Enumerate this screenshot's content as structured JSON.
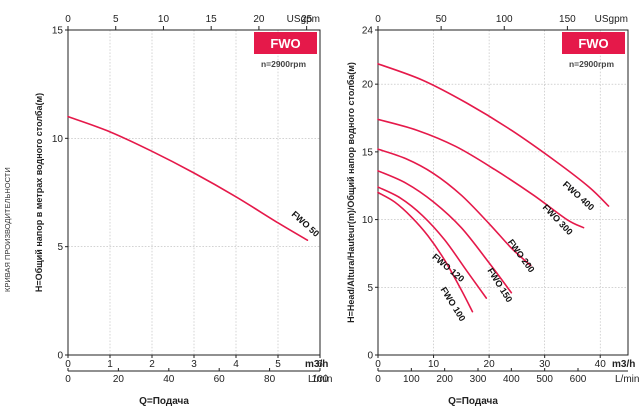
{
  "side_title": "КРИВАЯ ПРОИЗВОДИТЕЛЬНОСТИ",
  "colors": {
    "curve": "#e5194a",
    "badge": "#e5194a",
    "grid": "#b9b9b9"
  },
  "chart_data": [
    {
      "type": "line",
      "badge": "FWO",
      "speed": "n=2900rpm",
      "ylabel": "H=Общий напор в метрах водного столба(м)",
      "xlabel": "Q=Подача",
      "ylim": [
        0,
        15
      ],
      "yticks": [
        0,
        5,
        10,
        15
      ],
      "xlim": [
        0,
        6
      ],
      "xticks": [
        0,
        1,
        2,
        3,
        4,
        5,
        6
      ],
      "x_unit": "m3/h",
      "top_axis": {
        "lim": [
          0,
          26.4
        ],
        "ticks": [
          0,
          5,
          10,
          15,
          20,
          25
        ],
        "unit": "USgpm"
      },
      "bottom_axis": {
        "lim": [
          0,
          100
        ],
        "ticks": [
          0,
          20,
          40,
          60,
          80,
          100
        ],
        "unit": "L/min"
      },
      "series": [
        {
          "name": "FWO 50",
          "x": [
            0,
            1,
            2,
            3,
            4,
            5,
            5.7
          ],
          "y": [
            11,
            10.3,
            9.4,
            8.4,
            7.3,
            6.1,
            5.3
          ]
        }
      ]
    },
    {
      "type": "line",
      "badge": "FWO",
      "speed": "n=2900rpm",
      "ylabel": "H=Head/Altura/Hauteur(m)/Общий напор водного столба(м)",
      "xlabel": "Q=Подача",
      "ylim": [
        0,
        24
      ],
      "yticks": [
        0,
        5,
        10,
        15,
        20,
        24
      ],
      "xlim": [
        0,
        45
      ],
      "xticks": [
        0,
        10,
        20,
        30,
        40
      ],
      "x_unit": "m3/h",
      "top_axis": {
        "lim": [
          0,
          198
        ],
        "ticks": [
          0,
          50,
          100,
          150
        ],
        "unit": "USgpm"
      },
      "bottom_axis": {
        "lim": [
          0,
          750
        ],
        "ticks": [
          0,
          100,
          200,
          300,
          400,
          500,
          600
        ],
        "unit": "L/min"
      },
      "series": [
        {
          "name": "FWO 100",
          "x": [
            0,
            3,
            6,
            9,
            12,
            15,
            17
          ],
          "y": [
            12,
            11.3,
            10.2,
            8.8,
            7,
            4.8,
            3.2
          ]
        },
        {
          "name": "FWO 120",
          "x": [
            0,
            4,
            8,
            12,
            16,
            19.5
          ],
          "y": [
            12.4,
            11.6,
            10.3,
            8.5,
            6.2,
            4.2
          ]
        },
        {
          "name": "FWO 150",
          "x": [
            0,
            5,
            10,
            15,
            20,
            24
          ],
          "y": [
            13.6,
            12.7,
            11.3,
            9.4,
            6.8,
            4.6
          ]
        },
        {
          "name": "FWO 200",
          "x": [
            0,
            5,
            10,
            15,
            20,
            24,
            27.5
          ],
          "y": [
            15.2,
            14.5,
            13.4,
            11.8,
            9.7,
            7.9,
            6.6
          ]
        },
        {
          "name": "FWO 300",
          "x": [
            0,
            7,
            14,
            21,
            28,
            34,
            37
          ],
          "y": [
            17.4,
            16.6,
            15.4,
            13.7,
            11.8,
            10,
            9.4
          ]
        },
        {
          "name": "FWO 400",
          "x": [
            0,
            8,
            16,
            24,
            32,
            38,
            41.5
          ],
          "y": [
            21.5,
            20.3,
            18.6,
            16.6,
            14.3,
            12.4,
            11
          ]
        }
      ]
    }
  ]
}
